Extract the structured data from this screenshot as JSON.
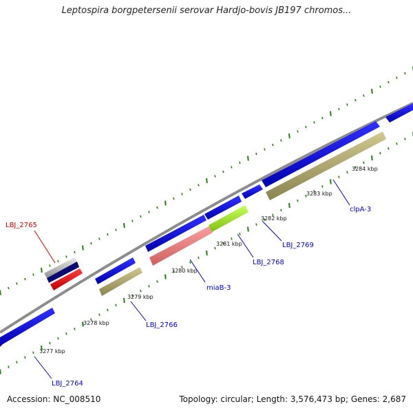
{
  "title": "Leptospira borgpetersenii serovar Hardjo-bovis JB197 chromos...",
  "footer": {
    "accession": "Accession: NC_008510",
    "summary": "Topology: circular; Length: 3,576,473 bp; Genes: 2,687"
  },
  "colors": {
    "backbone": "#8c8c8c",
    "tick": "#2a7a1a",
    "cds_blue": "#1010e0",
    "cds_khaki": "#b8b07a",
    "cds_red": "#ff1010",
    "cds_pink": "#f08080",
    "cds_lime": "#a8f030",
    "cds_gray": "#c8c8c8",
    "cds_navy": "#0a0a70",
    "label_blue": "#0000cc",
    "label_red": "#cc0000"
  },
  "kbp_ticks": [
    "3277 kbp",
    "3278 kbp",
    "3279 kbp",
    "3280 kbp",
    "3281 kbp",
    "3282 kbp",
    "3283 kbp",
    "3284 kbp"
  ],
  "gene_labels": [
    {
      "id": "lbj2765",
      "text": "LBJ_2765",
      "color": "red"
    },
    {
      "id": "lbj2764",
      "text": "LBJ_2764",
      "color": "blue"
    },
    {
      "id": "lbj2766",
      "text": "LBJ_2766",
      "color": "blue"
    },
    {
      "id": "miab3",
      "text": "miaB-3",
      "color": "blue"
    },
    {
      "id": "lbj2768",
      "text": "LBJ_2768",
      "color": "blue"
    },
    {
      "id": "lbj2769",
      "text": "LBJ_2769",
      "color": "blue"
    },
    {
      "id": "clpa3",
      "text": "clpA-3",
      "color": "blue"
    }
  ]
}
